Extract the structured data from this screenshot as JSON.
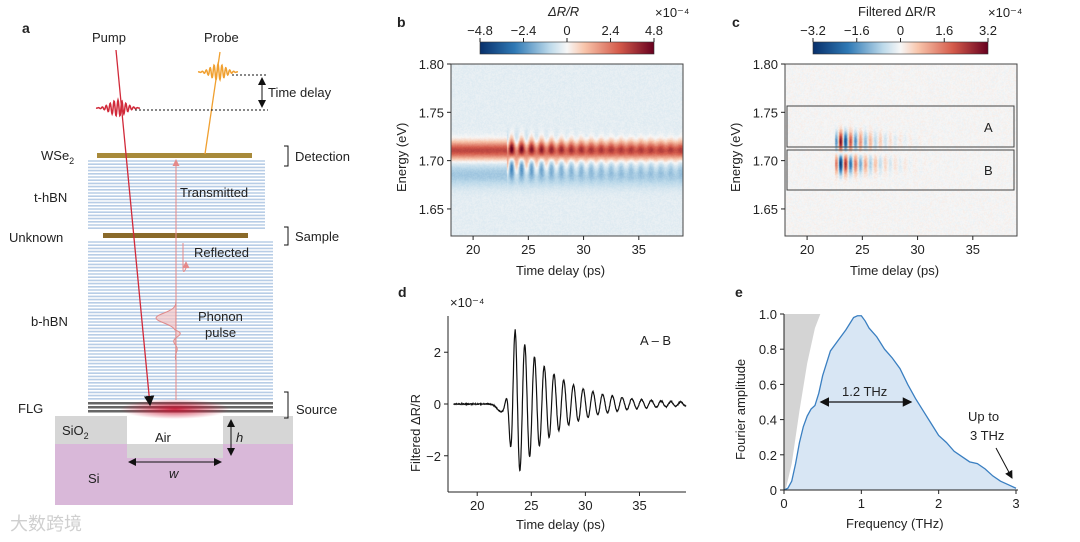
{
  "panel_a": {
    "letter": "a",
    "pump": "Pump",
    "probe": "Probe",
    "time_delay": "Time delay",
    "wse2": "WSe",
    "wse2_sub": "2",
    "t_hbn": "t-hBN",
    "unknown": "Unknown",
    "b_hbn": "b-hBN",
    "flg": "FLG",
    "sio2": "SiO",
    "sio2_sub": "2",
    "si": "Si",
    "air": "Air",
    "h": "h",
    "w": "w",
    "detection": "Detection",
    "sample": "Sample",
    "source": "Source",
    "transmitted": "Transmitted",
    "reflected": "Reflected",
    "phonon_1": "Phonon",
    "phonon_2": "pulse",
    "colors": {
      "pump": "#d12a3a",
      "probe": "#f0a030",
      "hbn": "#b8cde6",
      "wse2": "#a88a3a",
      "unknown": "#8a6a2a",
      "flg": "#666666",
      "sio2": "#d6d6d6",
      "si": "#d9b8d9"
    }
  },
  "watermark": "大数跨境",
  "chart_data": [
    {
      "id": "b",
      "letter": "b",
      "type": "heatmap",
      "colorbar_title": "ΔR/R",
      "colorbar_scale": "×10⁻⁴",
      "colorbar_ticks": [
        "−4.8",
        "−2.4",
        "0",
        "2.4",
        "4.8"
      ],
      "clim": [
        -4.8,
        4.8
      ],
      "xlabel": "Time delay (ps)",
      "ylabel": "Energy (eV)",
      "xticks": [
        "20",
        "25",
        "30",
        "35"
      ],
      "yticks": [
        "1.80",
        "1.75",
        "1.70",
        "1.65"
      ],
      "xlim": [
        18,
        39
      ],
      "ylim": [
        1.622,
        1.8
      ],
      "model": {
        "peak_energy_eV": 1.711,
        "dip_energy_eV": 1.686,
        "peak_amp": 3.6,
        "dip_amp": -1.0,
        "onset_ps": 23.0,
        "period_ps": 0.9,
        "osc_amp": 4.0,
        "decay_ps": 4.0
      }
    },
    {
      "id": "c",
      "letter": "c",
      "type": "heatmap",
      "colorbar_title": "Filtered ΔR/R",
      "colorbar_scale": "×10⁻⁴",
      "colorbar_ticks": [
        "−3.2",
        "−1.6",
        "0",
        "1.6",
        "3.2"
      ],
      "clim": [
        -3.2,
        3.2
      ],
      "xlabel": "Time delay (ps)",
      "ylabel": "Energy (eV)",
      "xticks": [
        "20",
        "25",
        "30",
        "35"
      ],
      "yticks": [
        "1.80",
        "1.75",
        "1.70",
        "1.65"
      ],
      "xlim": [
        18,
        39
      ],
      "ylim": [
        1.622,
        1.8
      ],
      "regions": [
        {
          "label": "A",
          "energy_range": [
            1.712,
            1.755
          ]
        },
        {
          "label": "B",
          "energy_range": [
            1.668,
            1.71
          ]
        }
      ],
      "model": {
        "onset_ps": 23.0,
        "period_ps": 0.9,
        "osc_amp": 3.2,
        "decay_ps": 2.0
      }
    },
    {
      "id": "d",
      "letter": "d",
      "type": "line",
      "ylabel": "Filtered ΔR/R",
      "yscale": "×10⁻⁴",
      "xlabel": "Time delay (ps)",
      "annotation": "A – B",
      "xticks": [
        "20",
        "25",
        "30",
        "35"
      ],
      "yticks": [
        "2",
        "0",
        "−2"
      ],
      "xlim": [
        17.3,
        39.3
      ],
      "ylim": [
        -3.4,
        3.4
      ],
      "model": {
        "onset_ps": 23.0,
        "period_ps": 0.9,
        "peak": 2.8,
        "decay_ps": 3.8,
        "pre_dip_ps": 22.2,
        "pre_dip_value": -0.3
      }
    },
    {
      "id": "e",
      "letter": "e",
      "type": "area",
      "xlabel": "Frequency (THz)",
      "ylabel": "Fourier amplitude",
      "xticks": [
        "0",
        "1",
        "2",
        "3"
      ],
      "yticks": [
        "0",
        "0.2",
        "0.4",
        "0.6",
        "0.8",
        "1.0"
      ],
      "xlim": [
        0,
        3.02
      ],
      "ylim": [
        0,
        1.0
      ],
      "annotation_fwhm": "1.2 THz",
      "fwhm_range": [
        0.45,
        1.67
      ],
      "annotation_up_1": "Up to",
      "annotation_up_2": "3 THz",
      "x": [
        0,
        0.05,
        0.1,
        0.15,
        0.2,
        0.25,
        0.3,
        0.35,
        0.4,
        0.45,
        0.5,
        0.6,
        0.7,
        0.8,
        0.9,
        0.95,
        1.0,
        1.05,
        1.1,
        1.2,
        1.3,
        1.4,
        1.5,
        1.6,
        1.7,
        1.8,
        1.9,
        2.0,
        2.1,
        2.2,
        2.3,
        2.4,
        2.5,
        2.6,
        2.7,
        2.8,
        2.9,
        3.0
      ],
      "y": [
        0,
        0.01,
        0.05,
        0.15,
        0.27,
        0.36,
        0.42,
        0.46,
        0.48,
        0.55,
        0.65,
        0.79,
        0.85,
        0.91,
        0.98,
        0.99,
        0.99,
        0.96,
        0.92,
        0.87,
        0.8,
        0.75,
        0.69,
        0.6,
        0.52,
        0.45,
        0.38,
        0.31,
        0.27,
        0.22,
        0.19,
        0.16,
        0.15,
        0.12,
        0.08,
        0.05,
        0.03,
        0.01
      ],
      "gray_region_edge_x": [
        0.02,
        0.1,
        0.2,
        0.3,
        0.4,
        0.47
      ],
      "gray_region_edge_y": [
        0,
        0.15,
        0.45,
        0.72,
        0.92,
        1.0
      ],
      "colors": {
        "line": "#3a7fc1",
        "fill": "#d8e6f4",
        "gray": "#d4d4d4"
      }
    }
  ]
}
